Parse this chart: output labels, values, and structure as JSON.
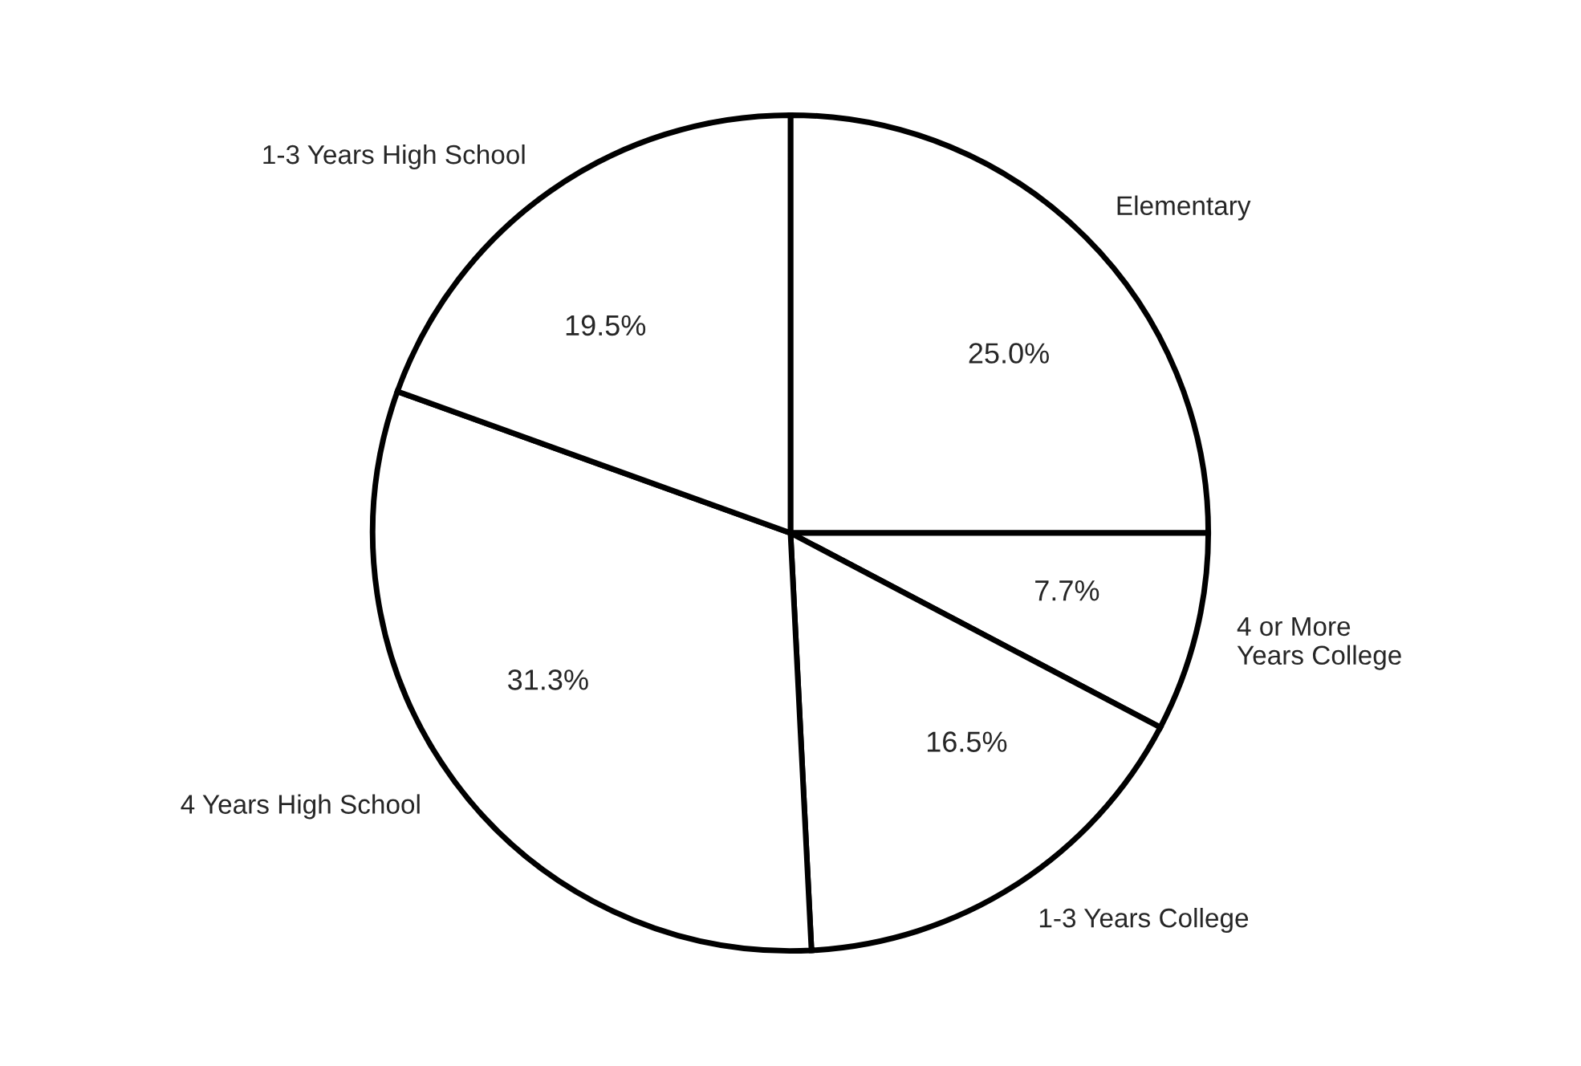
{
  "chart_data": {
    "type": "pie",
    "categories": [
      "Elementary",
      "4 or More\nYears College",
      "1-3 Years College",
      "4 Years High School",
      "1-3 Years High School"
    ],
    "values": [
      25.0,
      7.7,
      16.5,
      31.3,
      19.5
    ],
    "colors": [
      "#ffffff",
      "#ffffff",
      "#ffffff",
      "#ffffff",
      "#ffffff"
    ],
    "value_labels": [
      "25.0%",
      "7.7%",
      "16.5%",
      "31.3%",
      "19.5%"
    ],
    "legend": false
  }
}
